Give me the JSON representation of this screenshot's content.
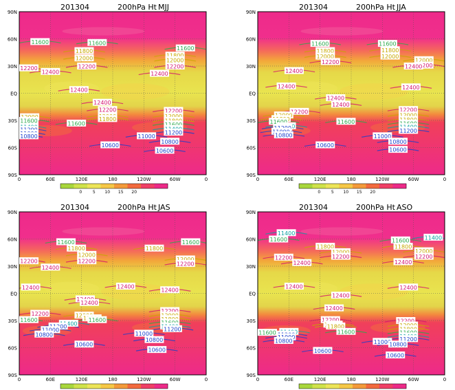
{
  "chart_data": [
    {
      "type": "heatmap",
      "title": {
        "date": "201304",
        "field": "200hPa Ht",
        "season": "MJJ"
      },
      "x_ticks": [
        "0",
        "60E",
        "120E",
        "180",
        "120W",
        "60W",
        "0"
      ],
      "y_ticks": [
        "90N",
        "60N",
        "30N",
        "EQ",
        "30S",
        "60S",
        "90S"
      ],
      "colorbar": {
        "ticks": [
          "0",
          "5",
          "10",
          "15",
          "20"
        ]
      },
      "contours": [
        {
          "value": "11600",
          "lon": 40,
          "lat": 57
        },
        {
          "value": "11600",
          "lon": 150,
          "lat": 56
        },
        {
          "value": "11600",
          "lon": 320,
          "lat": 50
        },
        {
          "value": "11800",
          "lon": 125,
          "lat": 47
        },
        {
          "value": "11800",
          "lon": 300,
          "lat": 42
        },
        {
          "value": "12000",
          "lon": 125,
          "lat": 39
        },
        {
          "value": "12000",
          "lon": 300,
          "lat": 37
        },
        {
          "value": "12200",
          "lon": 130,
          "lat": 30
        },
        {
          "value": "12200",
          "lon": 300,
          "lat": 30
        },
        {
          "value": "12200",
          "lon": 2,
          "lat": 28
        },
        {
          "value": "12400",
          "lon": 60,
          "lat": 24
        },
        {
          "value": "12400",
          "lon": 270,
          "lat": 22
        },
        {
          "value": "12400",
          "lon": 115,
          "lat": 4
        },
        {
          "value": "12400",
          "lon": 160,
          "lat": -10
        },
        {
          "value": "12200",
          "lon": 170,
          "lat": -18
        },
        {
          "value": "12200",
          "lon": 297,
          "lat": -19
        },
        {
          "value": "12000",
          "lon": 170,
          "lat": -25
        },
        {
          "value": "12000",
          "lon": 297,
          "lat": -25
        },
        {
          "value": "12000",
          "lon": 20,
          "lat": -26
        },
        {
          "value": "11800",
          "lon": 170,
          "lat": -28
        },
        {
          "value": "11800",
          "lon": 297,
          "lat": -30
        },
        {
          "value": "11600",
          "lon": 18,
          "lat": -30
        },
        {
          "value": "11600",
          "lon": 110,
          "lat": -33
        },
        {
          "value": "11600",
          "lon": 297,
          "lat": -34
        },
        {
          "value": "11400",
          "lon": 12,
          "lat": -37
        },
        {
          "value": "11400",
          "lon": 297,
          "lat": -39
        },
        {
          "value": "11200",
          "lon": 12,
          "lat": -40
        },
        {
          "value": "11200",
          "lon": 297,
          "lat": -43
        },
        {
          "value": "11000",
          "lon": 10,
          "lat": -44
        },
        {
          "value": "11000",
          "lon": 245,
          "lat": -47
        },
        {
          "value": "10800",
          "lon": 5,
          "lat": -47
        },
        {
          "value": "10800",
          "lon": 290,
          "lat": -53
        },
        {
          "value": "10600",
          "lon": 175,
          "lat": -57
        },
        {
          "value": "10600",
          "lon": 280,
          "lat": -63
        }
      ]
    },
    {
      "type": "heatmap",
      "title": {
        "date": "201304",
        "field": "200hPa Ht",
        "season": "JJA"
      },
      "x_ticks": [
        "0",
        "60E",
        "120E",
        "180",
        "120W",
        "60W",
        "0"
      ],
      "y_ticks": [
        "90N",
        "60N",
        "30N",
        "EQ",
        "30S",
        "60S",
        "90S"
      ],
      "colorbar": {
        "ticks": [
          "0",
          "5",
          "10",
          "15",
          "20"
        ]
      },
      "contours": [
        {
          "value": "11600",
          "lon": 120,
          "lat": 55
        },
        {
          "value": "11600",
          "lon": 250,
          "lat": 55
        },
        {
          "value": "11800",
          "lon": 130,
          "lat": 47
        },
        {
          "value": "11800",
          "lon": 255,
          "lat": 48
        },
        {
          "value": "12000",
          "lon": 130,
          "lat": 41
        },
        {
          "value": "12000",
          "lon": 255,
          "lat": 41
        },
        {
          "value": "12000",
          "lon": 320,
          "lat": 37
        },
        {
          "value": "12200",
          "lon": 140,
          "lat": 35
        },
        {
          "value": "12200",
          "lon": 320,
          "lat": 31
        },
        {
          "value": "12400",
          "lon": 300,
          "lat": 30
        },
        {
          "value": "12400",
          "lon": 70,
          "lat": 25
        },
        {
          "value": "12400",
          "lon": 55,
          "lat": 8
        },
        {
          "value": "12400",
          "lon": 295,
          "lat": 7
        },
        {
          "value": "12400",
          "lon": 150,
          "lat": -5
        },
        {
          "value": "12400",
          "lon": 160,
          "lat": -12
        },
        {
          "value": "12200",
          "lon": 80,
          "lat": -20
        },
        {
          "value": "12200",
          "lon": 290,
          "lat": -18
        },
        {
          "value": "12000",
          "lon": 50,
          "lat": -24
        },
        {
          "value": "12000",
          "lon": 290,
          "lat": -24
        },
        {
          "value": "11800",
          "lon": 45,
          "lat": -28
        },
        {
          "value": "11800",
          "lon": 290,
          "lat": -29
        },
        {
          "value": "11600",
          "lon": 40,
          "lat": -31
        },
        {
          "value": "11600",
          "lon": 170,
          "lat": -31
        },
        {
          "value": "11600",
          "lon": 290,
          "lat": -33
        },
        {
          "value": "11400",
          "lon": 55,
          "lat": -36
        },
        {
          "value": "11400",
          "lon": 290,
          "lat": -37
        },
        {
          "value": "11200",
          "lon": 48,
          "lat": -38
        },
        {
          "value": "11200",
          "lon": 290,
          "lat": -41
        },
        {
          "value": "11000",
          "lon": 45,
          "lat": -42
        },
        {
          "value": "11000",
          "lon": 240,
          "lat": -47
        },
        {
          "value": "10800",
          "lon": 50,
          "lat": -46
        },
        {
          "value": "10800",
          "lon": 270,
          "lat": -53
        },
        {
          "value": "10600",
          "lon": 130,
          "lat": -57
        },
        {
          "value": "10600",
          "lon": 270,
          "lat": -62
        }
      ]
    },
    {
      "type": "heatmap",
      "title": {
        "date": "201304",
        "field": "200hPa Ht",
        "season": "JAS"
      },
      "x_ticks": [
        "0",
        "60E",
        "120E",
        "180",
        "120W",
        "60W",
        "0"
      ],
      "y_ticks": [
        "90N",
        "60N",
        "30N",
        "EQ",
        "30S",
        "60S",
        "90S"
      ],
      "colorbar": {
        "ticks": [
          "0",
          "5",
          "10",
          "15",
          "20"
        ]
      },
      "contours": [
        {
          "value": "11600",
          "lon": 90,
          "lat": 57
        },
        {
          "value": "11600",
          "lon": 330,
          "lat": 57
        },
        {
          "value": "11800",
          "lon": 110,
          "lat": 50
        },
        {
          "value": "11800",
          "lon": 260,
          "lat": 50
        },
        {
          "value": "12000",
          "lon": 130,
          "lat": 43
        },
        {
          "value": "12000",
          "lon": 320,
          "lat": 38
        },
        {
          "value": "12200",
          "lon": 130,
          "lat": 36
        },
        {
          "value": "12200",
          "lon": 320,
          "lat": 33
        },
        {
          "value": "12200",
          "lon": 10,
          "lat": 36
        },
        {
          "value": "12400",
          "lon": 60,
          "lat": 29
        },
        {
          "value": "12400",
          "lon": 22,
          "lat": 7
        },
        {
          "value": "12400",
          "lon": 290,
          "lat": 4
        },
        {
          "value": "12400",
          "lon": 205,
          "lat": 8
        },
        {
          "value": "12400",
          "lon": 127,
          "lat": -6
        },
        {
          "value": "12400",
          "lon": 135,
          "lat": -10
        },
        {
          "value": "12200",
          "lon": 290,
          "lat": -19
        },
        {
          "value": "12200",
          "lon": 40,
          "lat": -22
        },
        {
          "value": "12000",
          "lon": 125,
          "lat": -24
        },
        {
          "value": "12000",
          "lon": 290,
          "lat": -24
        },
        {
          "value": "11800",
          "lon": 140,
          "lat": -27
        },
        {
          "value": "11800",
          "lon": 290,
          "lat": -28
        },
        {
          "value": "11600",
          "lon": 5,
          "lat": -29
        },
        {
          "value": "11600",
          "lon": 150,
          "lat": -29
        },
        {
          "value": "11600",
          "lon": 290,
          "lat": -32
        },
        {
          "value": "11400",
          "lon": 95,
          "lat": -33
        },
        {
          "value": "11400",
          "lon": 290,
          "lat": -36
        },
        {
          "value": "11200",
          "lon": 75,
          "lat": -36
        },
        {
          "value": "11200",
          "lon": 295,
          "lat": -39
        },
        {
          "value": "11000",
          "lon": 60,
          "lat": -40
        },
        {
          "value": "11000",
          "lon": 240,
          "lat": -44
        },
        {
          "value": "10800",
          "lon": 48,
          "lat": -45
        },
        {
          "value": "10800",
          "lon": 260,
          "lat": -51
        },
        {
          "value": "10600",
          "lon": 125,
          "lat": -56
        },
        {
          "value": "10600",
          "lon": 265,
          "lat": -62
        }
      ]
    },
    {
      "type": "heatmap",
      "title": {
        "date": "201304",
        "field": "200hPa Ht",
        "season": "ASO"
      },
      "x_ticks": [
        "0",
        "60E",
        "120E",
        "180",
        "120W",
        "60W",
        "0"
      ],
      "y_ticks": [
        "90N",
        "60N",
        "30N",
        "EQ",
        "30S",
        "60S",
        "90S"
      ],
      "colorbar": {
        "ticks": [
          "0",
          "5",
          "10",
          "15",
          "20"
        ]
      },
      "contours": [
        {
          "value": "11400",
          "lon": 55,
          "lat": 67
        },
        {
          "value": "11400",
          "lon": 338,
          "lat": 62
        },
        {
          "value": "11600",
          "lon": 40,
          "lat": 60
        },
        {
          "value": "11600",
          "lon": 275,
          "lat": 59
        },
        {
          "value": "11800",
          "lon": 130,
          "lat": 52
        },
        {
          "value": "11800",
          "lon": 280,
          "lat": 52
        },
        {
          "value": "12000",
          "lon": 160,
          "lat": 46
        },
        {
          "value": "12000",
          "lon": 320,
          "lat": 47
        },
        {
          "value": "12200",
          "lon": 160,
          "lat": 41
        },
        {
          "value": "12200",
          "lon": 320,
          "lat": 41
        },
        {
          "value": "12200",
          "lon": 50,
          "lat": 40
        },
        {
          "value": "12400",
          "lon": 85,
          "lat": 34
        },
        {
          "value": "12400",
          "lon": 280,
          "lat": 35
        },
        {
          "value": "12400",
          "lon": 70,
          "lat": 8
        },
        {
          "value": "12400",
          "lon": 290,
          "lat": 7
        },
        {
          "value": "12400",
          "lon": 160,
          "lat": -2
        },
        {
          "value": "12400",
          "lon": 147,
          "lat": -16
        },
        {
          "value": "12200",
          "lon": 140,
          "lat": -29
        },
        {
          "value": "12200",
          "lon": 285,
          "lat": -30
        },
        {
          "value": "12000",
          "lon": 145,
          "lat": -34
        },
        {
          "value": "12000",
          "lon": 290,
          "lat": -35
        },
        {
          "value": "11800",
          "lon": 150,
          "lat": -36
        },
        {
          "value": "11800",
          "lon": 290,
          "lat": -39
        },
        {
          "value": "11600",
          "lon": 10,
          "lat": -43
        },
        {
          "value": "11600",
          "lon": 170,
          "lat": -42
        },
        {
          "value": "11600",
          "lon": 290,
          "lat": -43
        },
        {
          "value": "11400",
          "lon": 60,
          "lat": -42
        },
        {
          "value": "11400",
          "lon": 290,
          "lat": -47
        },
        {
          "value": "11200",
          "lon": 55,
          "lat": -45
        },
        {
          "value": "11200",
          "lon": 290,
          "lat": -50
        },
        {
          "value": "11000",
          "lon": 55,
          "lat": -48
        },
        {
          "value": "11000",
          "lon": 240,
          "lat": -53
        },
        {
          "value": "10800",
          "lon": 50,
          "lat": -52
        },
        {
          "value": "10800",
          "lon": 270,
          "lat": -56
        },
        {
          "value": "10600",
          "lon": 125,
          "lat": -63
        },
        {
          "value": "10600",
          "lon": 265,
          "lat": -68
        }
      ]
    }
  ]
}
